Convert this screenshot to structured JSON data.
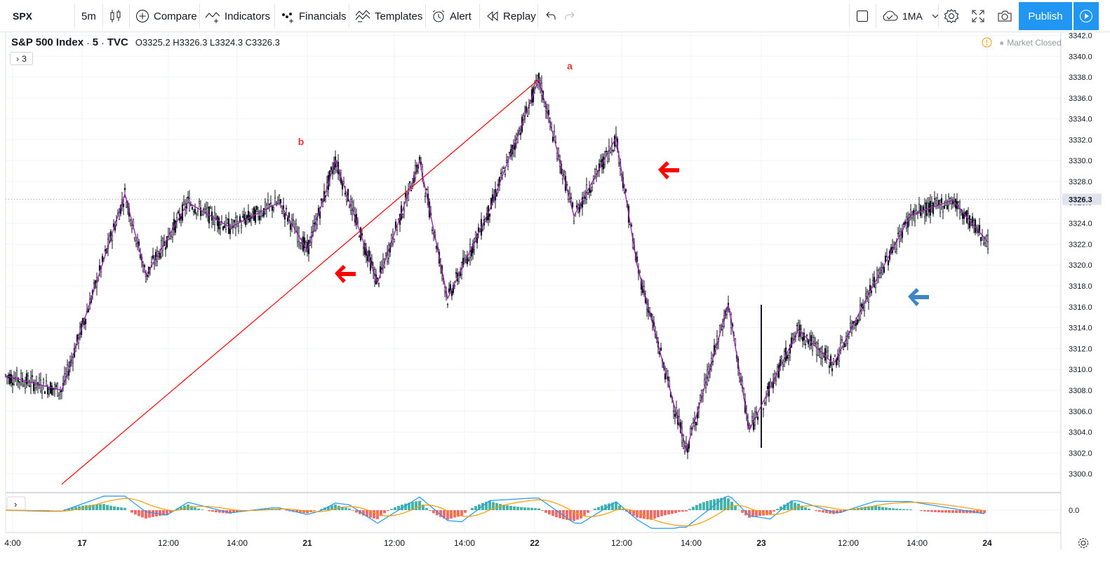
{
  "toolbar": {
    "symbol": "SPX",
    "interval": "5m",
    "compare": "Compare",
    "indicators": "Indicators",
    "financials": "Financials",
    "templates": "Templates",
    "alert": "Alert",
    "replay": "Replay",
    "layout": "1MA",
    "publish": "Publish"
  },
  "legend": {
    "name": "S&P 500 Index",
    "interval": "5",
    "source": "TVC",
    "ohlc": "O3325.2 H3326.3 L3324.3 C3326.3",
    "collapsed_count": "3"
  },
  "market_status": "Market Closed",
  "colors": {
    "accent": "#2196f3",
    "zigzag": "#9c27b0",
    "trendline": "#ff0000",
    "arrow_red": "#ff0000",
    "arrow_blue": "#3d85c6",
    "macd": "#2196f3",
    "signal": "#ff9800",
    "hist_pos": "#26a69a",
    "hist_neg": "#ef5350"
  },
  "chart_data": {
    "type": "line",
    "title": "S&P 500 Index, 5, TVC",
    "price_axis": {
      "ticks": [
        "3342.0",
        "3340.0",
        "3338.0",
        "3336.0",
        "3334.0",
        "3332.0",
        "3330.0",
        "3328.0",
        "3326.0",
        "3324.0",
        "3322.0",
        "3320.0",
        "3318.0",
        "3316.0",
        "3314.0",
        "3312.0",
        "3310.0",
        "3308.0",
        "3306.0",
        "3304.0",
        "3302.0",
        "3300.0"
      ],
      "last_price": "3326.3",
      "ylim": [
        3298.2,
        3342.3
      ]
    },
    "time_axis": {
      "ticks": [
        "4:00",
        "17",
        "12:00",
        "14:00",
        "21",
        "12:00",
        "14:00",
        "22",
        "12:00",
        "14:00",
        "23",
        "12:00",
        "14:00",
        "24"
      ]
    },
    "macd_axis": {
      "ticks": [
        "0.0"
      ]
    },
    "wave_labels": [
      "a",
      "b"
    ],
    "series": [
      {
        "name": "zigzag",
        "x": [
          0,
          8,
          17,
          20,
          26,
          32,
          39,
          43,
          47,
          53,
          59,
          63,
          69,
          76,
          81,
          87,
          90,
          97,
          103,
          106,
          113,
          118,
          123,
          129,
          135,
          140
        ],
        "values": [
          3309.4,
          3308.0,
          3326.8,
          3319.0,
          3326.0,
          3323.6,
          3326.0,
          3321.4,
          3330.0,
          3318.3,
          3330.0,
          3316.8,
          3325.3,
          3337.8,
          3324.7,
          3332.2,
          3320.0,
          3302.2,
          3316.2,
          3304.2,
          3313.8,
          3310.5,
          3317.2,
          3324.8,
          3326.2,
          3322.2
        ]
      },
      {
        "name": "trendline",
        "x": [
          8,
          76
        ],
        "values": [
          3299.0,
          3337.8
        ]
      }
    ]
  }
}
